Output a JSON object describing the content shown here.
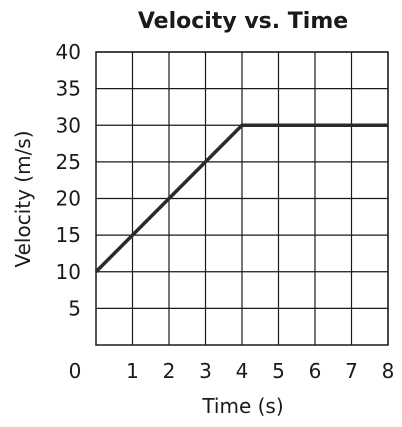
{
  "chart_data": {
    "type": "line",
    "title": "Velocity vs. Time",
    "xlabel": "Time (s)",
    "ylabel": "Velocity (m/s)",
    "xlim": [
      0,
      8
    ],
    "ylim": [
      0,
      40
    ],
    "x_ticks": [
      1,
      2,
      3,
      4,
      5,
      6,
      7,
      8
    ],
    "y_ticks": [
      5,
      10,
      15,
      20,
      25,
      30,
      35,
      40
    ],
    "origin_label": "0",
    "grid": true,
    "line_color": "#2b2b2b",
    "series": [
      {
        "x": [
          0,
          4,
          8
        ],
        "y": [
          10,
          30,
          30
        ]
      }
    ]
  }
}
